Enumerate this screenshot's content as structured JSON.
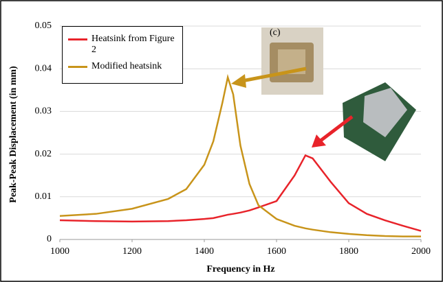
{
  "chart_data": {
    "type": "line",
    "x_label": "Frequency in Hz",
    "y_label": "Peak-Peak Displacement (in mm)",
    "annotation": "(c)",
    "x": [
      1000,
      1100,
      1200,
      1300,
      1350,
      1400,
      1425,
      1450,
      1465,
      1480,
      1500,
      1525,
      1550,
      1600,
      1650,
      1680,
      1700,
      1750,
      1800,
      1850,
      1900,
      1950,
      2000
    ],
    "series": [
      {
        "name": "Heatsink from Figure 2",
        "color": "#e8232a",
        "values": [
          0.0045,
          0.0043,
          0.0042,
          0.0043,
          0.0045,
          0.0048,
          0.005,
          0.0055,
          0.0058,
          0.006,
          0.0063,
          0.0068,
          0.0075,
          0.009,
          0.015,
          0.0197,
          0.019,
          0.0135,
          0.0085,
          0.006,
          0.0045,
          0.0032,
          0.002
        ]
      },
      {
        "name": "Modified heatsink",
        "color": "#c8941a",
        "values": [
          0.0055,
          0.006,
          0.0072,
          0.0095,
          0.0118,
          0.0175,
          0.023,
          0.032,
          0.038,
          0.034,
          0.022,
          0.013,
          0.008,
          0.0048,
          0.0032,
          0.0026,
          0.0023,
          0.0017,
          0.0013,
          0.001,
          0.0008,
          0.0007,
          0.0007
        ]
      }
    ],
    "xlim": [
      1000,
      2000
    ],
    "xticks": [
      1000,
      1200,
      1400,
      1600,
      1800,
      2000
    ],
    "ylim": [
      0,
      0.05
    ],
    "yticks": [
      0,
      0.01,
      0.02,
      0.03,
      0.04,
      0.05
    ],
    "grid": true
  }
}
